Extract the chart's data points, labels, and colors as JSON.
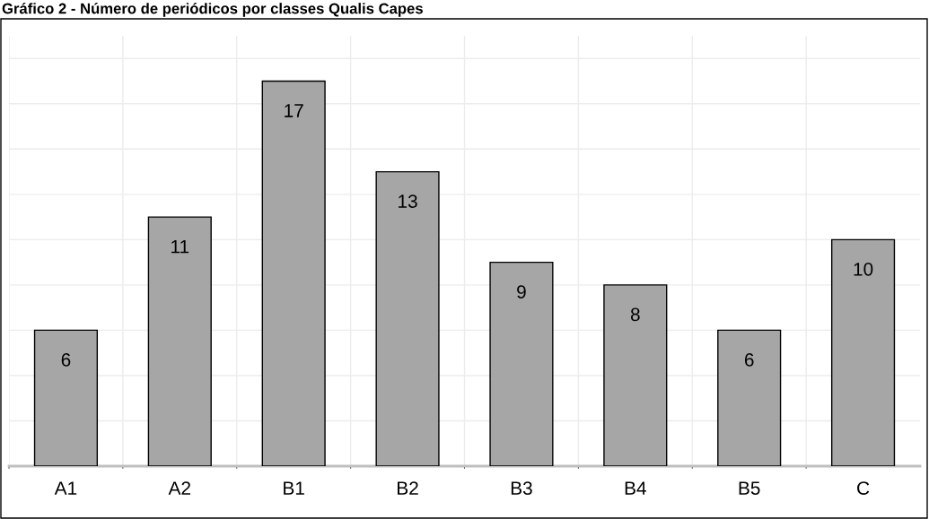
{
  "chart_data": {
    "type": "bar",
    "title": "Gráfico 2 - Número de periódicos por classes Qualis Capes",
    "categories": [
      "A1",
      "A2",
      "B1",
      "B2",
      "B3",
      "B4",
      "B5",
      "C"
    ],
    "values": [
      6,
      11,
      17,
      13,
      9,
      8,
      6,
      10
    ],
    "color": "#a6a6a6",
    "data_labels": true,
    "ylim": [
      0,
      19
    ],
    "yticks": [
      {
        "value": 0,
        "label": null
      },
      {
        "value": 2,
        "label": null
      },
      {
        "value": 4,
        "label": null
      },
      {
        "value": 6,
        "label": null
      },
      {
        "value": 8,
        "label": null
      },
      {
        "value": 10,
        "label": null
      },
      {
        "value": 12,
        "label": null
      },
      {
        "value": 14,
        "label": null
      },
      {
        "value": 16,
        "label": null
      },
      {
        "value": 18,
        "label": null
      }
    ],
    "grid": true
  }
}
